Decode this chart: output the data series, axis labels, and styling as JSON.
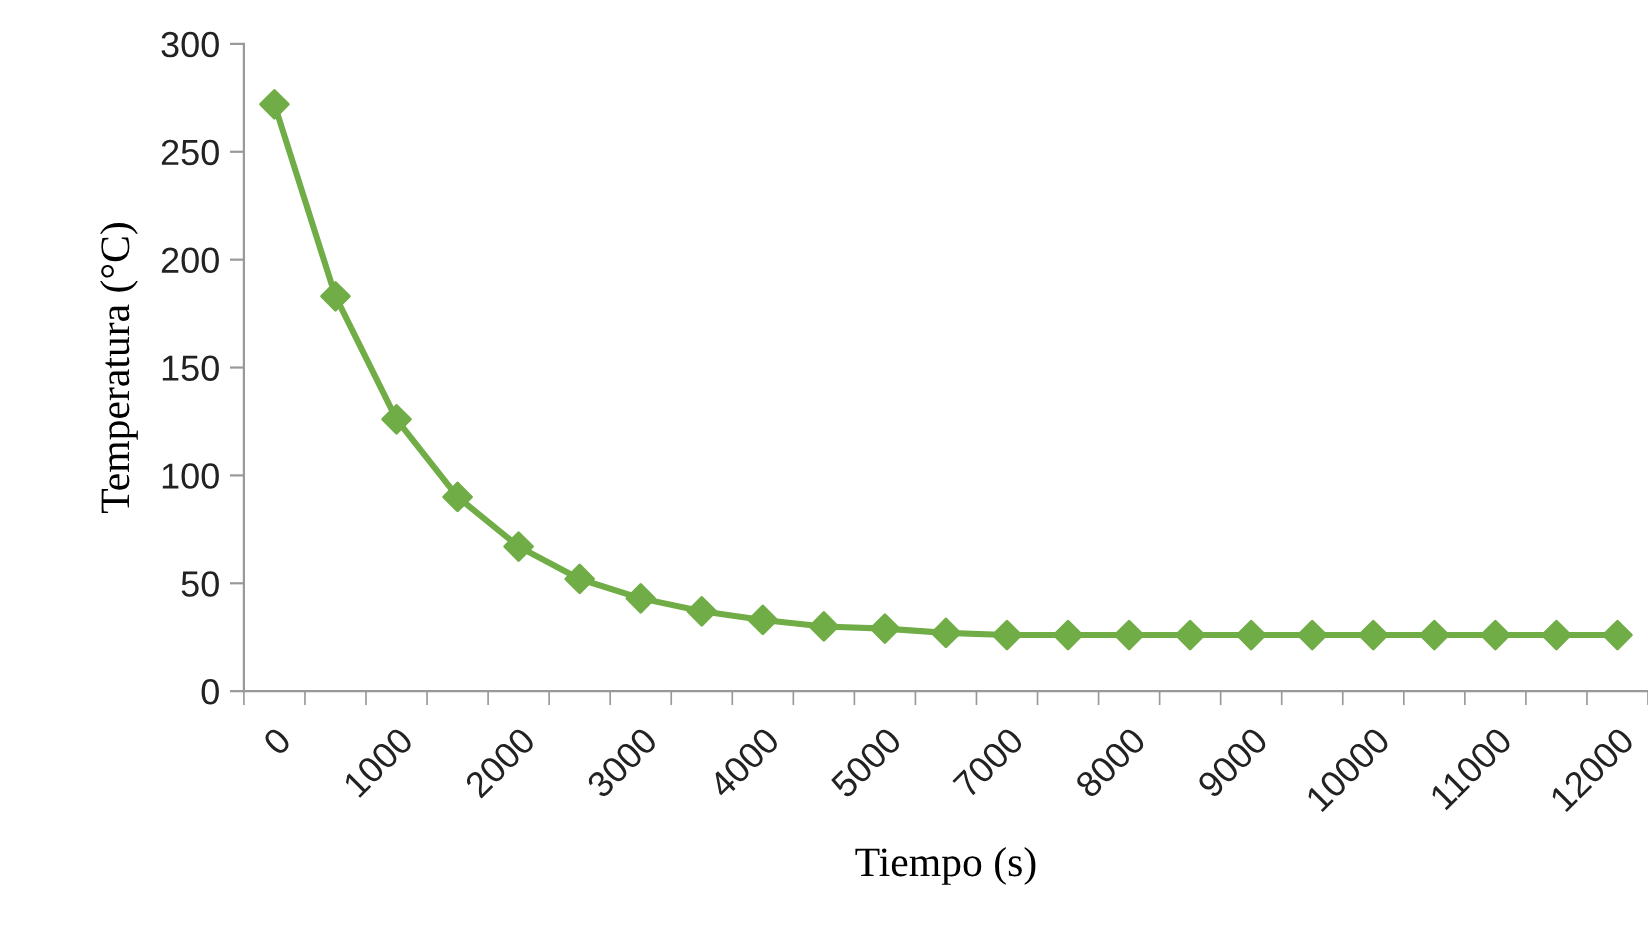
{
  "chart_data": {
    "type": "line",
    "xlabel": "Tiempo (s)",
    "ylabel": "Temperatura (°C)",
    "categories": [
      "0",
      null,
      "1000",
      null,
      "2000",
      null,
      "3000",
      null,
      "4000",
      null,
      "5000",
      null,
      "7000",
      null,
      "8000",
      null,
      "9000",
      null,
      "10000",
      null,
      "11000",
      null,
      "12000"
    ],
    "series": [
      {
        "color": "#70ad47",
        "values": [
          272,
          183,
          126,
          90,
          67,
          52,
          43,
          37,
          33,
          30,
          29,
          27,
          26,
          26,
          26,
          26,
          26,
          26,
          26,
          26,
          26,
          26,
          26
        ]
      }
    ],
    "ylim": [
      0,
      300
    ],
    "yticks": [
      0,
      50,
      100,
      150,
      200,
      250,
      300
    ],
    "grid": false,
    "legend": false,
    "marker": "diamond",
    "line_style": "solid"
  }
}
